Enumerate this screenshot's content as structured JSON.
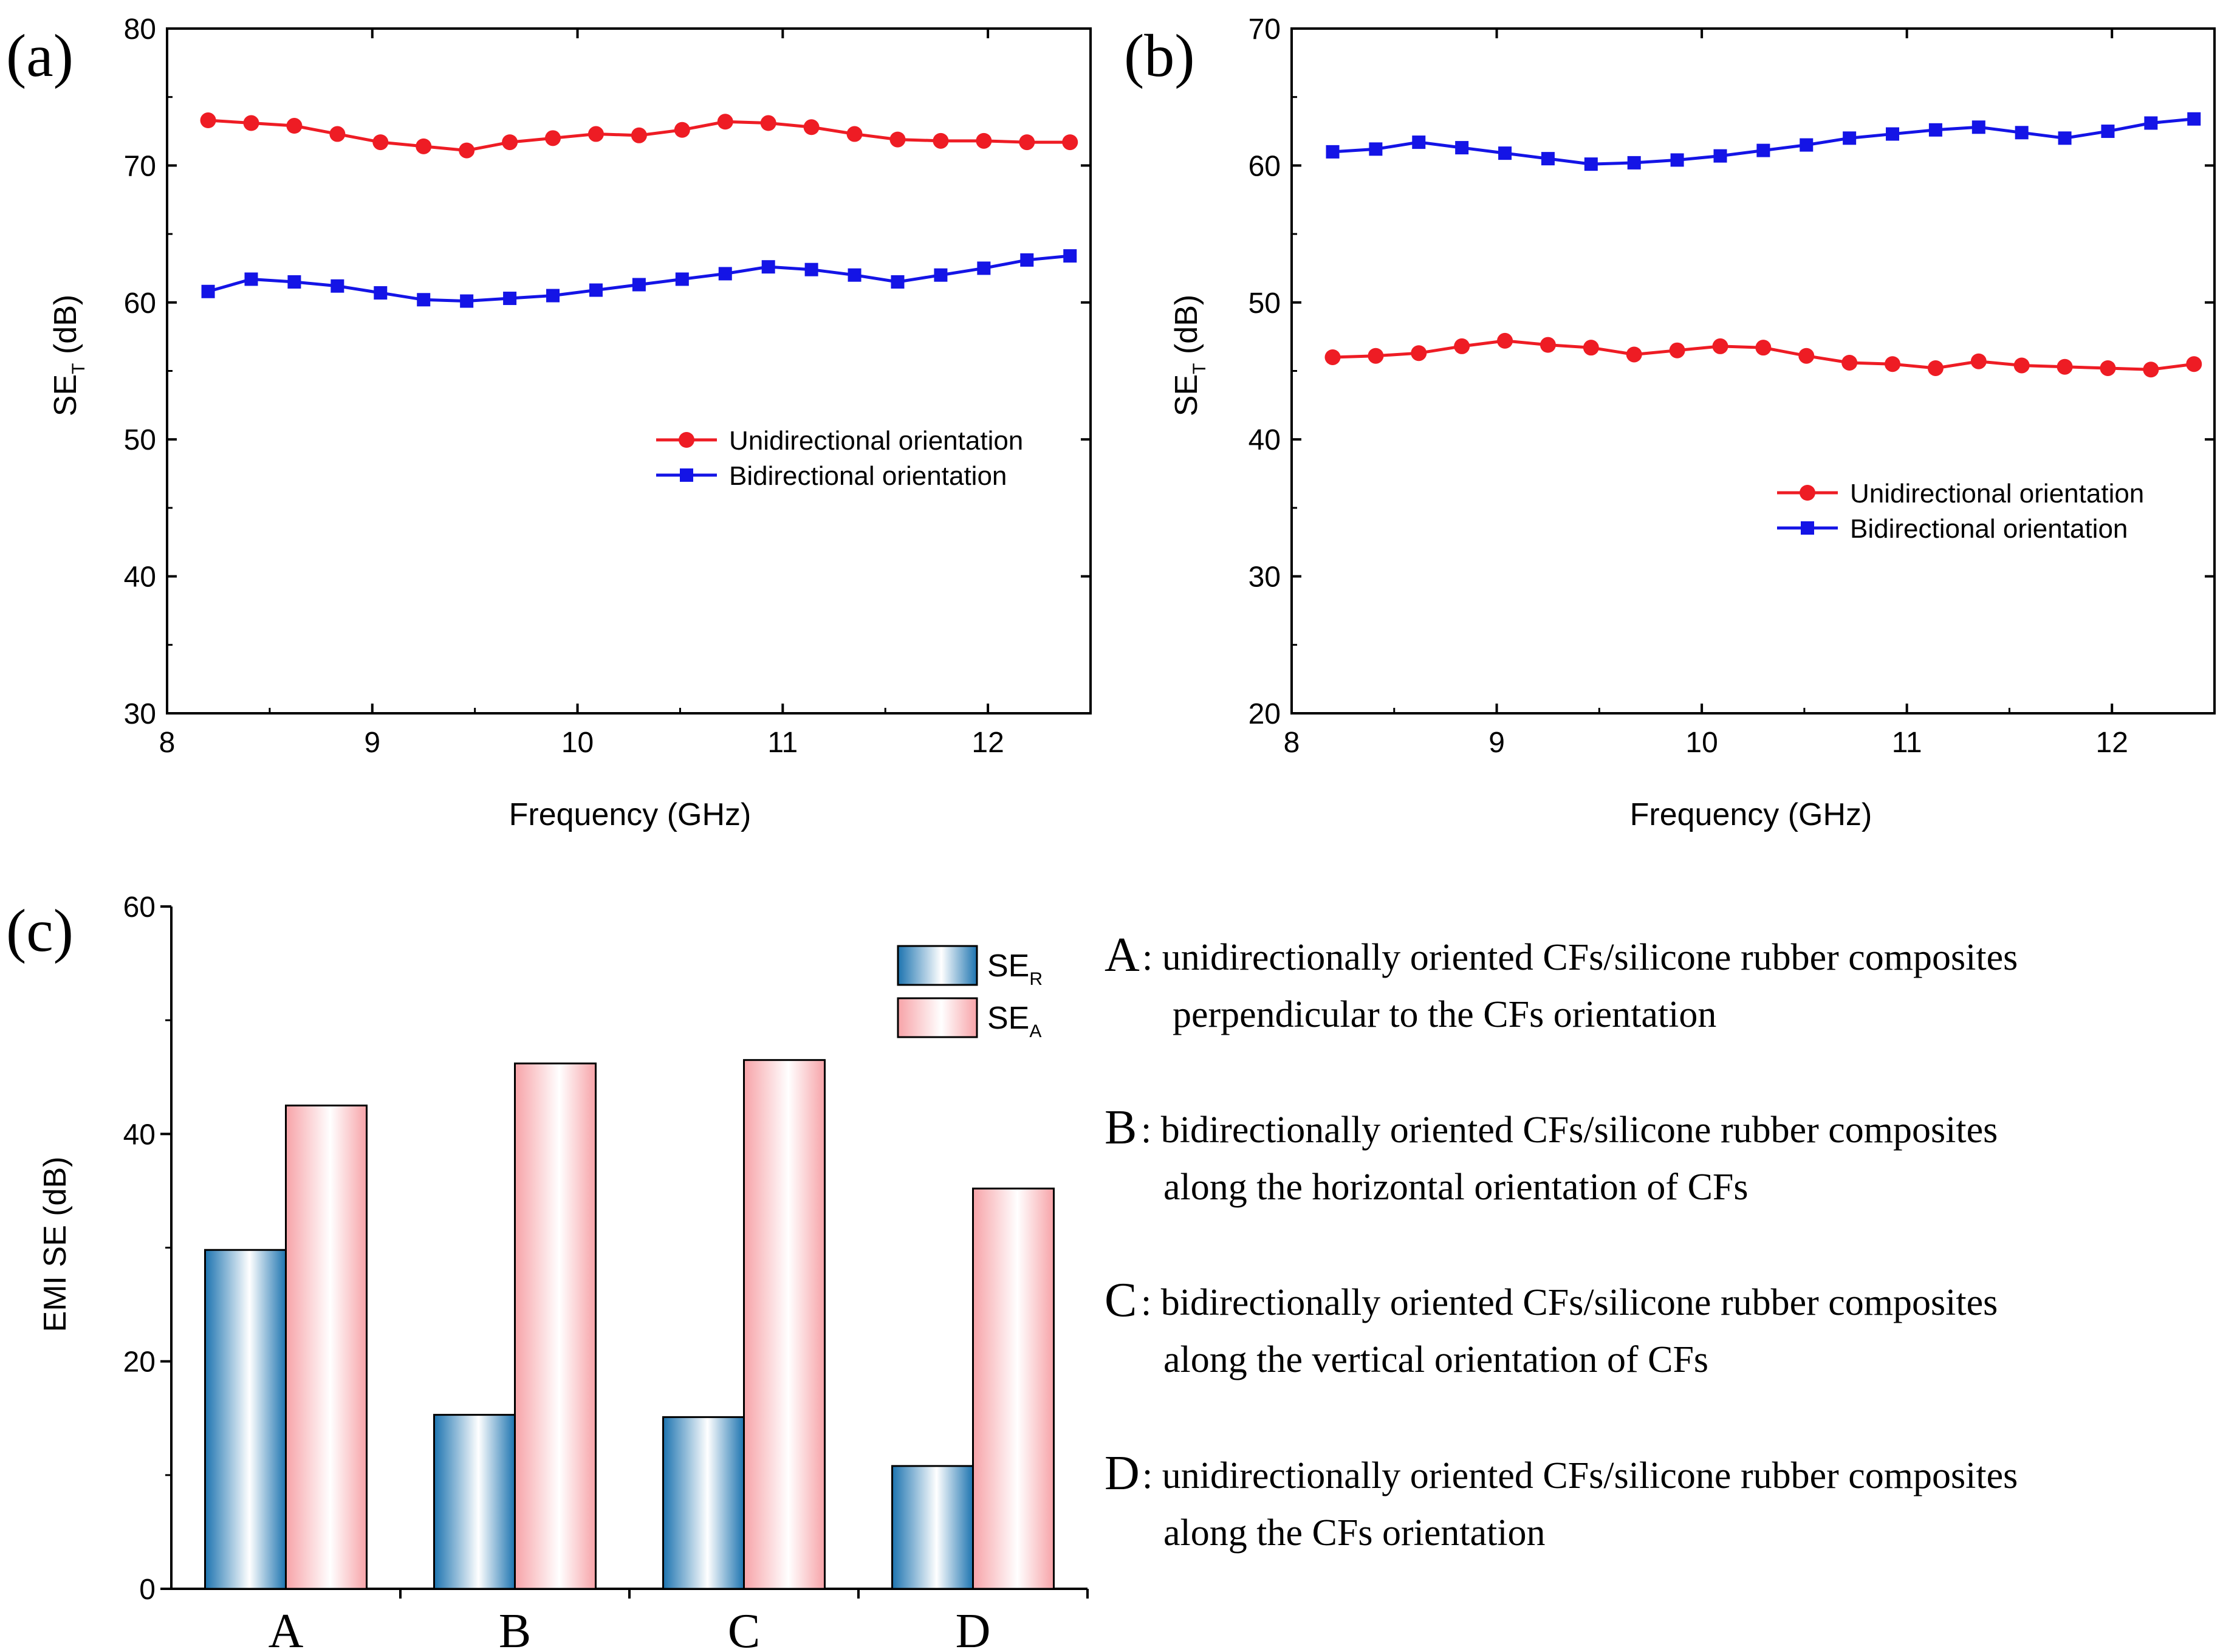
{
  "colors": {
    "red": "#ee1c24",
    "blue": "#1414e6",
    "bar_blue": "#1d74b0",
    "bar_red": "#f7a3a8",
    "axis": "#000000"
  },
  "chart_data": [
    {
      "id": "a",
      "type": "line",
      "panel_label": "(a)",
      "xlabel": "Frequency (GHz)",
      "ylabel_main": "SE",
      "ylabel_sub": "T",
      "ylabel_unit": " (dB)",
      "xlim": [
        8,
        12.5
      ],
      "ylim": [
        30,
        80
      ],
      "xticks": [
        "8",
        "9",
        "10",
        "11",
        "12"
      ],
      "yticks": [
        "30",
        "40",
        "50",
        "60",
        "70",
        "80"
      ],
      "legend_position": "middle-right",
      "x": [
        8.2,
        8.41,
        8.62,
        8.83,
        9.04,
        9.25,
        9.46,
        9.67,
        9.88,
        10.09,
        10.3,
        10.51,
        10.72,
        10.93,
        11.14,
        11.35,
        11.56,
        11.77,
        11.98,
        12.19,
        12.4
      ],
      "series": [
        {
          "name": "Unidirectional orientation",
          "color": "red",
          "marker": "circle",
          "values": [
            73.3,
            73.1,
            72.9,
            72.3,
            71.7,
            71.4,
            71.1,
            71.7,
            72.0,
            72.3,
            72.2,
            72.6,
            73.2,
            73.1,
            72.8,
            72.3,
            71.9,
            71.8,
            71.8,
            71.7,
            71.7
          ]
        },
        {
          "name": "Bidirectional orientation",
          "color": "blue",
          "marker": "square",
          "values": [
            60.8,
            61.7,
            61.5,
            61.2,
            60.7,
            60.2,
            60.1,
            60.3,
            60.5,
            60.9,
            61.3,
            61.7,
            62.1,
            62.6,
            62.4,
            62.0,
            61.5,
            62.0,
            62.5,
            63.1,
            63.4
          ]
        }
      ]
    },
    {
      "id": "b",
      "type": "line",
      "panel_label": "(b)",
      "xlabel": "Frequency (GHz)",
      "ylabel_main": "SE",
      "ylabel_sub": "T",
      "ylabel_unit": " (dB)",
      "xlim": [
        8,
        12.5
      ],
      "ylim": [
        20,
        70
      ],
      "xticks": [
        "8",
        "9",
        "10",
        "11",
        "12"
      ],
      "yticks": [
        "20",
        "30",
        "40",
        "50",
        "60",
        "70"
      ],
      "legend_position": "lower-right",
      "x": [
        8.2,
        8.41,
        8.62,
        8.83,
        9.04,
        9.25,
        9.46,
        9.67,
        9.88,
        10.09,
        10.3,
        10.51,
        10.72,
        10.93,
        11.14,
        11.35,
        11.56,
        11.77,
        11.98,
        12.19,
        12.4
      ],
      "series": [
        {
          "name": "Unidirectional orientation",
          "color": "red",
          "marker": "circle",
          "values": [
            46.0,
            46.1,
            46.3,
            46.8,
            47.2,
            46.9,
            46.7,
            46.2,
            46.5,
            46.8,
            46.7,
            46.1,
            45.6,
            45.5,
            45.2,
            45.7,
            45.4,
            45.3,
            45.2,
            45.1,
            45.5
          ]
        },
        {
          "name": "Bidirectional orientation",
          "color": "blue",
          "marker": "square",
          "values": [
            61.0,
            61.2,
            61.7,
            61.3,
            60.9,
            60.5,
            60.1,
            60.2,
            60.4,
            60.7,
            61.1,
            61.5,
            62.0,
            62.3,
            62.6,
            62.8,
            62.4,
            62.0,
            62.5,
            63.1,
            63.4
          ]
        }
      ]
    },
    {
      "id": "c",
      "type": "bar",
      "panel_label": "(c)",
      "ylabel": "EMI SE (dB)",
      "ylim": [
        0,
        60
      ],
      "yticks": [
        "0",
        "20",
        "40",
        "60"
      ],
      "categories": [
        "A",
        "B",
        "C",
        "D"
      ],
      "legend_position": "top-right",
      "series": [
        {
          "name_main": "SE",
          "name_sub": "R",
          "color": "bar_blue",
          "values": [
            29.8,
            15.3,
            15.1,
            10.8
          ]
        },
        {
          "name_main": "SE",
          "name_sub": "A",
          "color": "bar_red",
          "values": [
            42.5,
            46.2,
            46.5,
            35.2
          ]
        }
      ]
    }
  ],
  "notes": [
    {
      "key": "A",
      "line1": ": unidirectionally oriented CFs/silicone rubber composites",
      "line2": "perpendicular to the CFs orientation"
    },
    {
      "key": "B",
      "line1": ": bidirectionally oriented CFs/silicone rubber composites",
      "line2": "along the horizontal orientation of CFs"
    },
    {
      "key": "C",
      "line1": ": bidirectionally oriented CFs/silicone rubber composites",
      "line2": "along the vertical orientation of CFs"
    },
    {
      "key": "D",
      "line1": ": unidirectionally oriented CFs/silicone rubber composites",
      "line2": "along the CFs orientation"
    }
  ]
}
